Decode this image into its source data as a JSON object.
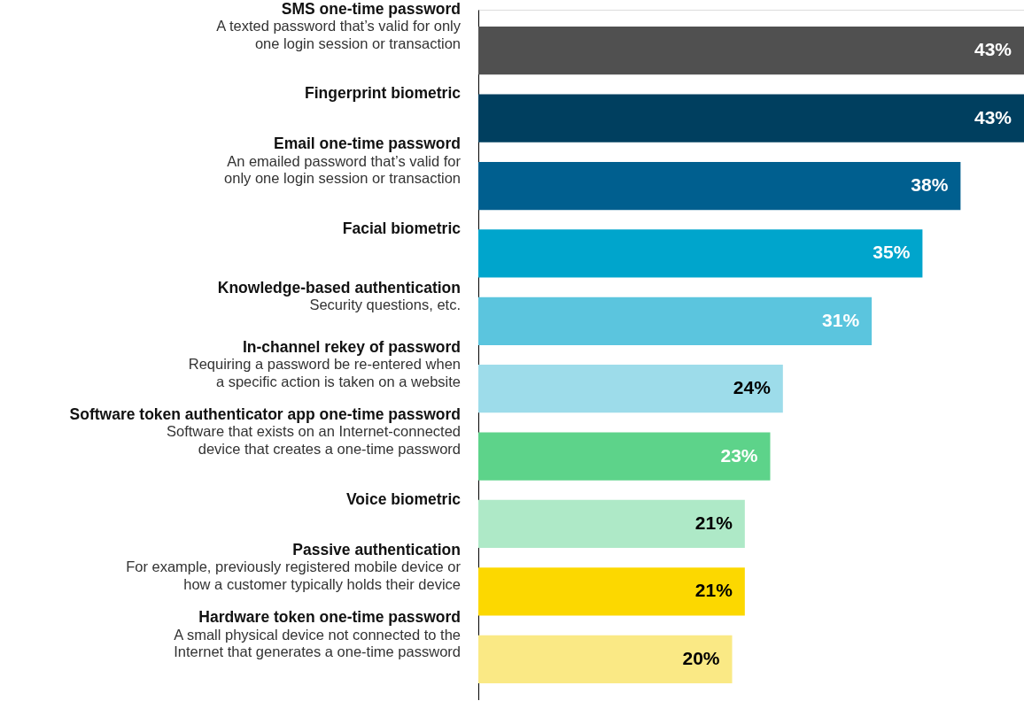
{
  "chart_data": {
    "type": "bar",
    "orientation": "horizontal",
    "value_labels": [
      "43%",
      "43%",
      "38%",
      "35%",
      "31%",
      "24%",
      "23%",
      "21%",
      "21%",
      "20%"
    ],
    "categories": [
      "SMS one-time password\nA texted password that’s valid for only\none login session or transaction",
      "Fingerprint biometric",
      "Email one-time password\nAn emailed password that’s valid for\nonly one login session or transaction",
      "Facial biometric",
      "Knowledge-based authentication\nSecurity questions, etc.",
      "In-channel rekey of password\nRequiring a password be re-entered when\na specific action is taken on a website",
      "Software token authenticator app one-time password\nSoftware that exists on an Internet-connected\ndevice that creates a one-time password",
      "Voice biometric",
      "Passive authentication\nFor example, previously registered mobile device or\nhow a customer typically holds their device",
      "Hardware token one-time password\nA small physical device not connected to the\nInternet that generates a one-time password"
    ],
    "values": [
      43,
      43,
      38,
      35,
      31,
      24,
      23,
      21,
      21,
      20
    ],
    "colors": [
      "#505050",
      "#003f5f",
      "#005f8f",
      "#00a5cc",
      "#5bc5de",
      "#9ddcea",
      "#5dd38a",
      "#aee9c7",
      "#fcd800",
      "#fae985"
    ]
  }
}
